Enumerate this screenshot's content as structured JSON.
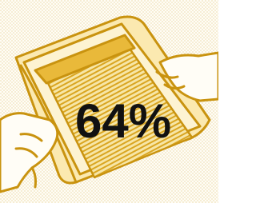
{
  "stat": {
    "label": "64%"
  }
}
